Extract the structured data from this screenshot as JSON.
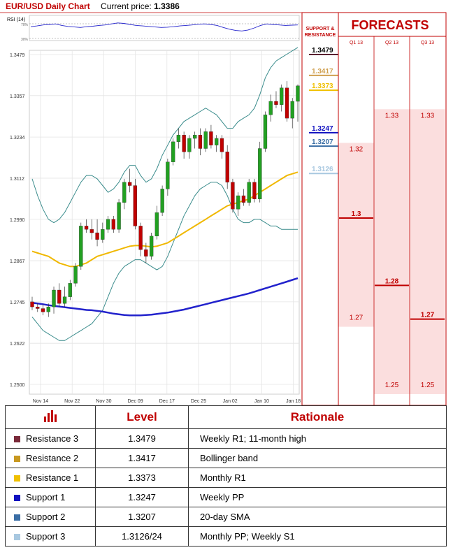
{
  "header": {
    "title": "EUR/USD Daily Chart",
    "price_label": "Current price:",
    "price_value": "1.3386"
  },
  "rsi": {
    "label": "RSI (14)",
    "upper": "70%",
    "lower": "30%",
    "values": [
      55,
      58,
      62,
      64,
      66,
      60,
      56,
      54,
      52,
      55,
      57,
      60,
      62,
      66,
      70,
      68,
      64,
      60,
      58,
      56,
      54,
      52,
      53,
      55,
      58,
      60,
      62,
      65,
      66,
      64,
      60,
      52,
      45,
      40,
      38,
      42,
      50,
      60,
      66,
      64,
      62,
      60,
      61,
      62
    ]
  },
  "colors": {
    "red": "#c00000",
    "bull": "#22a022",
    "bear": "#c00000",
    "sma_long": "#2222cc",
    "sma_mid": "#f0b800",
    "bollinger": "#3a8c8c",
    "res3": "#5a2030",
    "res2": "#d0a050",
    "res1": "#f0c000",
    "sup1": "#1010c0",
    "sup2": "#3a6ea5",
    "sup3": "#a8c8e0",
    "forecast_bg": "#fbdede"
  },
  "chart_data": {
    "type": "candlestick",
    "title": "EUR/USD Daily Chart",
    "y_ticks": [
      "1.3479",
      "1.3357",
      "1.3234",
      "1.3112",
      "1.2990",
      "1.2867",
      "1.2745",
      "1.2622",
      "1.2500"
    ],
    "x_ticks": [
      "Nov 14",
      "Nov 22",
      "Nov 30",
      "Dec 09",
      "Dec 17",
      "Dec 25",
      "Jan 02",
      "Jan 10",
      "Jan 18"
    ],
    "ylim": [
      1.25,
      1.3479
    ],
    "candles": [
      [
        1.2745,
        1.276,
        1.272,
        1.273
      ],
      [
        1.273,
        1.274,
        1.2715,
        1.2725
      ],
      [
        1.2725,
        1.2738,
        1.2705,
        1.2715
      ],
      [
        1.2715,
        1.274,
        1.27,
        1.273
      ],
      [
        1.273,
        1.279,
        1.271,
        1.278
      ],
      [
        1.278,
        1.28,
        1.273,
        1.274
      ],
      [
        1.274,
        1.279,
        1.273,
        1.276
      ],
      [
        1.276,
        1.281,
        1.275,
        1.28
      ],
      [
        1.28,
        1.286,
        1.279,
        1.285
      ],
      [
        1.285,
        1.298,
        1.284,
        1.297
      ],
      [
        1.297,
        1.299,
        1.295,
        1.296
      ],
      [
        1.296,
        1.299,
        1.293,
        1.295
      ],
      [
        1.295,
        1.299,
        1.291,
        1.293
      ],
      [
        1.293,
        1.298,
        1.292,
        1.296
      ],
      [
        1.296,
        1.3,
        1.295,
        1.299
      ],
      [
        1.299,
        1.3,
        1.295,
        1.296
      ],
      [
        1.296,
        1.305,
        1.295,
        1.304
      ],
      [
        1.304,
        1.311,
        1.302,
        1.31
      ],
      [
        1.31,
        1.314,
        1.307,
        1.309
      ],
      [
        1.309,
        1.311,
        1.296,
        1.297
      ],
      [
        1.297,
        1.298,
        1.288,
        1.29
      ],
      [
        1.29,
        1.292,
        1.286,
        1.288
      ],
      [
        1.288,
        1.295,
        1.287,
        1.294
      ],
      [
        1.294,
        1.303,
        1.293,
        1.301
      ],
      [
        1.301,
        1.309,
        1.3,
        1.308
      ],
      [
        1.308,
        1.317,
        1.306,
        1.316
      ],
      [
        1.316,
        1.323,
        1.315,
        1.322
      ],
      [
        1.322,
        1.326,
        1.32,
        1.324
      ],
      [
        1.324,
        1.325,
        1.317,
        1.319
      ],
      [
        1.319,
        1.324,
        1.317,
        1.323
      ],
      [
        1.323,
        1.325,
        1.32,
        1.324
      ],
      [
        1.324,
        1.326,
        1.318,
        1.32
      ],
      [
        1.32,
        1.326,
        1.319,
        1.325
      ],
      [
        1.325,
        1.327,
        1.32,
        1.321
      ],
      [
        1.321,
        1.324,
        1.319,
        1.323
      ],
      [
        1.323,
        1.324,
        1.317,
        1.319
      ],
      [
        1.319,
        1.321,
        1.308,
        1.31
      ],
      [
        1.31,
        1.311,
        1.301,
        1.302
      ],
      [
        1.302,
        1.307,
        1.3,
        1.306
      ],
      [
        1.306,
        1.308,
        1.303,
        1.304
      ],
      [
        1.304,
        1.311,
        1.303,
        1.31
      ],
      [
        1.31,
        1.311,
        1.304,
        1.305
      ],
      [
        1.305,
        1.322,
        1.304,
        1.32
      ],
      [
        1.32,
        1.331,
        1.319,
        1.33
      ],
      [
        1.33,
        1.336,
        1.328,
        1.334
      ],
      [
        1.334,
        1.337,
        1.332,
        1.333
      ],
      [
        1.333,
        1.339,
        1.331,
        1.338
      ],
      [
        1.338,
        1.34,
        1.328,
        1.329
      ],
      [
        1.329,
        1.335,
        1.326,
        1.334
      ],
      [
        1.334,
        1.339,
        1.328,
        1.3386
      ]
    ],
    "bollinger_upper": [
      1.311,
      1.306,
      1.302,
      1.299,
      1.298,
      1.299,
      1.301,
      1.304,
      1.307,
      1.31,
      1.312,
      1.312,
      1.311,
      1.309,
      1.307,
      1.308,
      1.31,
      1.313,
      1.315,
      1.315,
      1.312,
      1.31,
      1.311,
      1.314,
      1.318,
      1.321,
      1.324,
      1.326,
      1.328,
      1.329,
      1.33,
      1.331,
      1.332,
      1.331,
      1.33,
      1.328,
      1.326,
      1.326,
      1.328,
      1.329,
      1.33,
      1.332,
      1.336,
      1.341,
      1.344,
      1.346,
      1.347,
      1.348,
      1.349,
      1.35
    ],
    "bollinger_lower": [
      1.27,
      1.268,
      1.266,
      1.265,
      1.264,
      1.263,
      1.263,
      1.264,
      1.265,
      1.266,
      1.267,
      1.268,
      1.27,
      1.272,
      1.276,
      1.28,
      1.283,
      1.285,
      1.286,
      1.287,
      1.287,
      1.286,
      1.285,
      1.284,
      1.285,
      1.288,
      1.292,
      1.296,
      1.3,
      1.303,
      1.306,
      1.308,
      1.309,
      1.31,
      1.31,
      1.309,
      1.306,
      1.302,
      1.299,
      1.298,
      1.298,
      1.299,
      1.299,
      1.298,
      1.297,
      1.297,
      1.296,
      1.296,
      1.296,
      1.296
    ],
    "sma_mid": [
      1.2895,
      1.289,
      1.2885,
      1.288,
      1.287,
      1.286,
      1.2855,
      1.285,
      1.285,
      1.2855,
      1.286,
      1.287,
      1.288,
      1.2885,
      1.289,
      1.2895,
      1.29,
      1.2905,
      1.291,
      1.2912,
      1.2912,
      1.291,
      1.2908,
      1.291,
      1.2915,
      1.292,
      1.293,
      1.294,
      1.295,
      1.296,
      1.297,
      1.298,
      1.299,
      1.3,
      1.301,
      1.302,
      1.303,
      1.3035,
      1.304,
      1.3045,
      1.305,
      1.306,
      1.307,
      1.308,
      1.309,
      1.31,
      1.311,
      1.312,
      1.3125,
      1.313
    ],
    "sma_long": [
      1.2742,
      1.274,
      1.2738,
      1.2735,
      1.2733,
      1.2731,
      1.2729,
      1.2727,
      1.2725,
      1.2723,
      1.2721,
      1.272,
      1.2718,
      1.2716,
      1.2713,
      1.271,
      1.2708,
      1.2706,
      1.2705,
      1.2705,
      1.2705,
      1.2706,
      1.2707,
      1.2709,
      1.2711,
      1.2713,
      1.2716,
      1.2719,
      1.2722,
      1.2726,
      1.273,
      1.2734,
      1.2738,
      1.2742,
      1.2746,
      1.275,
      1.2754,
      1.2758,
      1.2762,
      1.2766,
      1.277,
      1.2775,
      1.278,
      1.2785,
      1.279,
      1.2795,
      1.28,
      1.2805,
      1.281,
      1.2815
    ]
  },
  "levels_header": {
    "title": "SUPPORT & RESISTANCE",
    "items": [
      {
        "label": "1.3479",
        "value": 1.3479,
        "color": "#5a2030",
        "text_color": "#000000"
      },
      {
        "label": "1.3417",
        "value": 1.3417,
        "color": "#d0a050",
        "text_color": "#d0a050"
      },
      {
        "label": "1.3373",
        "value": 1.3373,
        "color": "#f0c000",
        "text_color": "#f0c000"
      },
      {
        "label": "1.3247",
        "value": 1.3247,
        "color": "#1010c0",
        "text_color": "#1010c0"
      },
      {
        "label": "1.3207",
        "value": 1.3207,
        "color": "#3a6ea5",
        "text_color": "#3a6ea5"
      },
      {
        "label": "1.3126",
        "value": 1.3126,
        "color": "#a8c8e0",
        "text_color": "#a8c8e0"
      }
    ]
  },
  "forecasts": {
    "title": "FORECASTS",
    "quarters": [
      "Q1 13",
      "Q2 13",
      "Q3 13"
    ],
    "columns": [
      {
        "high": "1.32",
        "low": "1.27",
        "center": "1.3",
        "high_v": 1.32,
        "low_v": 1.27,
        "center_v": 1.3
      },
      {
        "high": "1.33",
        "low": "1.25",
        "center": "1.28",
        "high_v": 1.33,
        "low_v": 1.25,
        "center_v": 1.28
      },
      {
        "high": "1.33",
        "low": "1.25",
        "center": "1.27",
        "high_v": 1.33,
        "low_v": 1.25,
        "center_v": 1.27
      }
    ]
  },
  "table": {
    "col_level": "Level",
    "col_rationale": "Rationale",
    "rows": [
      {
        "name": "Resistance 3",
        "level": "1.3479",
        "rationale": "Weekly R1; 11-month high",
        "color": "#7a2a3a"
      },
      {
        "name": "Resistance 2",
        "level": "1.3417",
        "rationale": "Bollinger band",
        "color": "#c89820"
      },
      {
        "name": "Resistance 1",
        "level": "1.3373",
        "rationale": "Monthly R1",
        "color": "#f0c000"
      },
      {
        "name": "Support 1",
        "level": "1.3247",
        "rationale": "Weekly PP",
        "color": "#1010c0"
      },
      {
        "name": "Support 2",
        "level": "1.3207",
        "rationale": "20-day SMA",
        "color": "#3a6ea5"
      },
      {
        "name": "Support 3",
        "level": "1.3126/24",
        "rationale": "Monthly PP; Weekly S1",
        "color": "#a8c8e0"
      }
    ]
  }
}
